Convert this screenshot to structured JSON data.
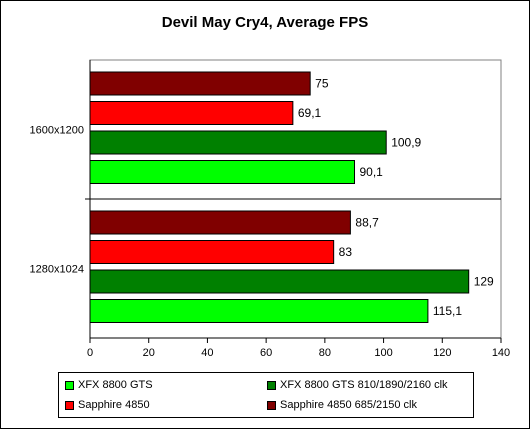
{
  "chart_data": {
    "type": "bar",
    "orientation": "horizontal",
    "title": "Devil May Cry4, Average FPS",
    "categories": [
      "1600x1200",
      "1280x1024"
    ],
    "series": [
      {
        "name": "XFX 8800 GTS",
        "color": "#00ff00",
        "values": [
          90.1,
          115.1
        ],
        "labels": [
          "90,1",
          "115,1"
        ]
      },
      {
        "name": "XFX 8800 GTS 810/1890/2160 clk",
        "color": "#008000",
        "values": [
          100.9,
          129
        ],
        "labels": [
          "100,9",
          "129"
        ]
      },
      {
        "name": "Sapphire 4850",
        "color": "#ff0000",
        "values": [
          69.1,
          83
        ],
        "labels": [
          "69,1",
          "83"
        ]
      },
      {
        "name": "Sapphire 4850 685/2150 clk",
        "color": "#800000",
        "values": [
          75,
          88.7
        ],
        "labels": [
          "75",
          "88,7"
        ]
      }
    ],
    "xlim": [
      0,
      140
    ],
    "xticks": [
      "0",
      "20",
      "40",
      "60",
      "80",
      "100",
      "120",
      "140"
    ],
    "grid": false,
    "legend_position": "bottom"
  },
  "legend": {
    "items": [
      {
        "label": "XFX 8800 GTS",
        "color": "#00ff00"
      },
      {
        "label": "XFX 8800 GTS 810/1890/2160 clk",
        "color": "#008000"
      },
      {
        "label": "Sapphire 4850",
        "color": "#ff0000"
      },
      {
        "label": "Sapphire 4850 685/2150 clk",
        "color": "#800000"
      }
    ]
  }
}
